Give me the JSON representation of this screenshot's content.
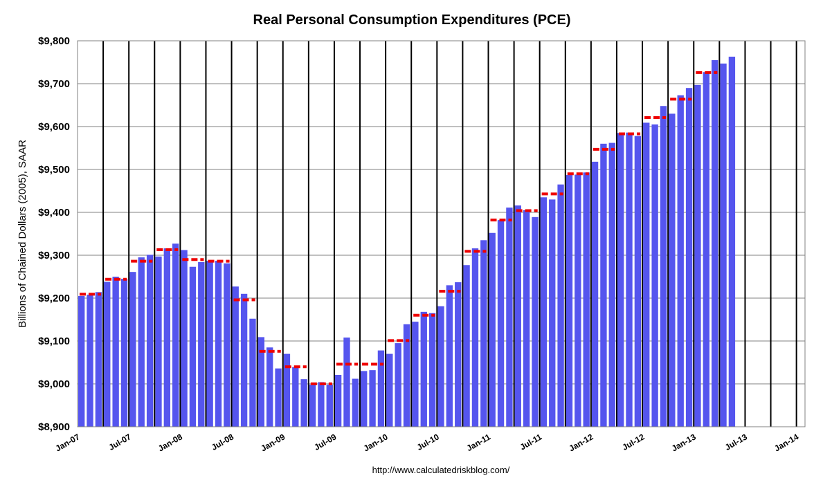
{
  "chart_data": {
    "type": "bar",
    "title": "Real Personal Consumption Expenditures (PCE)",
    "ylabel": "Billions of Chained Dollars (2005), SAAR",
    "xlabel": "",
    "source": "http://www.calculatedriskblog.com/",
    "ylim": [
      8900,
      9800
    ],
    "yticks": [
      8900,
      9000,
      9100,
      9200,
      9300,
      9400,
      9500,
      9600,
      9700,
      9800
    ],
    "ytick_labels": [
      "$8,900",
      "$9,000",
      "$9,100",
      "$9,200",
      "$9,300",
      "$9,400",
      "$9,500",
      "$9,600",
      "$9,700",
      "$9,800"
    ],
    "xtick_labels": [
      "Jan-07",
      "Jul-07",
      "Jan-08",
      "Jul-08",
      "Jan-09",
      "Jul-09",
      "Jan-10",
      "Jul-10",
      "Jan-11",
      "Jul-11",
      "Jan-12",
      "Jul-12",
      "Jan-13",
      "Jul-13",
      "Jan-14"
    ],
    "grid": true,
    "legend": "none",
    "colors": {
      "bars": "#5555ee",
      "quarterly_average": "#ee0000",
      "quarter_lines": "#000000",
      "grid": "#808080"
    },
    "series": [
      {
        "name": "Monthly",
        "x": [
          "2007-01",
          "2007-02",
          "2007-03",
          "2007-04",
          "2007-05",
          "2007-06",
          "2007-07",
          "2007-08",
          "2007-09",
          "2007-10",
          "2007-11",
          "2007-12",
          "2008-01",
          "2008-02",
          "2008-03",
          "2008-04",
          "2008-05",
          "2008-06",
          "2008-07",
          "2008-08",
          "2008-09",
          "2008-10",
          "2008-11",
          "2008-12",
          "2009-01",
          "2009-02",
          "2009-03",
          "2009-04",
          "2009-05",
          "2009-06",
          "2009-07",
          "2009-08",
          "2009-09",
          "2009-10",
          "2009-11",
          "2009-12",
          "2010-01",
          "2010-02",
          "2010-03",
          "2010-04",
          "2010-05",
          "2010-06",
          "2010-07",
          "2010-08",
          "2010-09",
          "2010-10",
          "2010-11",
          "2010-12",
          "2011-01",
          "2011-02",
          "2011-03",
          "2011-04",
          "2011-05",
          "2011-06",
          "2011-07",
          "2011-08",
          "2011-09",
          "2011-10",
          "2011-11",
          "2011-12",
          "2012-01",
          "2012-02",
          "2012-03",
          "2012-04",
          "2012-05",
          "2012-06",
          "2012-07",
          "2012-08",
          "2012-09",
          "2012-10",
          "2012-11",
          "2012-12",
          "2013-01",
          "2013-02",
          "2013-03",
          "2013-04",
          "2013-05"
        ],
        "values": [
          9205,
          9208,
          9214,
          9238,
          9250,
          9245,
          9261,
          9295,
          9301,
          9297,
          9316,
          9327,
          9312,
          9273,
          9284,
          9287,
          9287,
          9281,
          9227,
          9210,
          9152,
          9109,
          9085,
          9036,
          9070,
          9039,
          9011,
          8998,
          9004,
          8998,
          9021,
          9108,
          9012,
          9030,
          9032,
          9078,
          9070,
          9095,
          9139,
          9145,
          9168,
          9165,
          9181,
          9230,
          9237,
          9277,
          9316,
          9335,
          9352,
          9382,
          9411,
          9416,
          9405,
          9389,
          9435,
          9430,
          9465,
          9487,
          9488,
          9493,
          9518,
          9560,
          9562,
          9585,
          9586,
          9578,
          9609,
          9605,
          9648,
          9630,
          9673,
          9690,
          9697,
          9727,
          9755,
          9747,
          9763
        ]
      },
      {
        "name": "Quarterly",
        "quarters": [
          "2007Q1",
          "2007Q2",
          "2007Q3",
          "2007Q4",
          "2008Q1",
          "2008Q2",
          "2008Q3",
          "2008Q4",
          "2009Q1",
          "2009Q2",
          "2009Q3",
          "2009Q4",
          "2010Q1",
          "2010Q2",
          "2010Q3",
          "2010Q4",
          "2011Q1",
          "2011Q2",
          "2011Q3",
          "2011Q4",
          "2012Q1",
          "2012Q2",
          "2012Q3",
          "2012Q4",
          "2013Q1"
        ],
        "values": [
          9209,
          9244,
          9286,
          9313,
          9290,
          9286,
          9196,
          9076,
          9040,
          9000,
          9046,
          9046,
          9101,
          9160,
          9216,
          9309,
          9382,
          9404,
          9443,
          9490,
          9547,
          9583,
          9621,
          9664,
          9726
        ]
      }
    ]
  }
}
